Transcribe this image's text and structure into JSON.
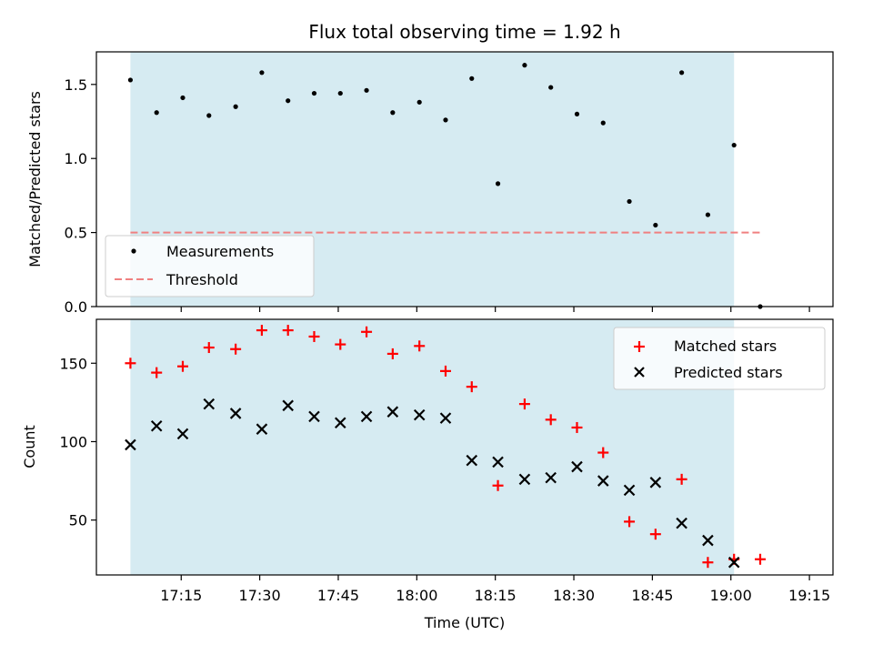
{
  "chart_data": {
    "type": "scatter",
    "title": "Flux total observing time = 1.92 h",
    "xlabel": "Time (UTC)",
    "x_tick_labels": [
      "17:15",
      "17:30",
      "17:45",
      "18:00",
      "18:15",
      "18:30",
      "18:45",
      "19:00",
      "19:15"
    ],
    "x_tick_minutes": [
      1035,
      1050,
      1065,
      1080,
      1095,
      1110,
      1125,
      1140,
      1155
    ],
    "xlim_minutes": [
      1018.8,
      1159.5
    ],
    "shaded_interval_minutes": [
      1025.3,
      1140.6
    ],
    "shade_color": "#add8e6",
    "times": [
      "17:10",
      "17:15",
      "17:20",
      "17:25",
      "17:30",
      "17:35",
      "17:40",
      "17:45",
      "17:50",
      "17:55",
      "18:00",
      "18:05",
      "18:10",
      "18:15",
      "18:20",
      "18:25",
      "18:30",
      "18:35",
      "18:40",
      "18:45",
      "18:50",
      "18:55",
      "19:00",
      "19:05",
      "19:10"
    ],
    "times_minutes": [
      1030.0,
      1035.0,
      1040.0,
      1045.0,
      1050.0,
      1055.0,
      1060.0,
      1065.0,
      1070.0,
      1075.0,
      1080.0,
      1085.0,
      1090.0,
      1095.0,
      1100.0,
      1105.0,
      1110.0,
      1115.0,
      1120.0,
      1125.0,
      1130.0,
      1135.0,
      1140.0,
      1145.0,
      1150.0
    ],
    "panels": [
      {
        "ylabel": "Matched/Predicted stars",
        "ylim": [
          0.0,
          1.72
        ],
        "y_ticks": [
          0.0,
          0.5,
          1.0,
          1.5
        ],
        "y_tick_labels": [
          "0.0",
          "0.5",
          "1.0",
          "1.5"
        ],
        "legend_position": "lower-left",
        "series": [
          {
            "name": "Measurements",
            "marker": "dot",
            "color": "#000000",
            "x_minutes": [
              1025.3,
              1030.3,
              1035.3,
              1040.3,
              1045.4,
              1050.4,
              1055.4,
              1060.4,
              1065.4,
              1070.4,
              1075.4,
              1080.5,
              1085.5,
              1090.5,
              1095.5,
              1100.6,
              1105.6,
              1110.6,
              1115.6,
              1120.6,
              1125.6,
              1130.6,
              1135.6,
              1140.6,
              1145.6
            ],
            "values": [
              1.53,
              1.31,
              1.41,
              1.29,
              1.35,
              1.58,
              1.39,
              1.44,
              1.44,
              1.46,
              1.31,
              1.38,
              1.26,
              1.54,
              0.83,
              1.63,
              1.48,
              1.3,
              1.24,
              0.71,
              0.55,
              1.58,
              0.62,
              1.09,
              0.0
            ]
          }
        ],
        "threshold": {
          "name": "Threshold",
          "value": 0.5,
          "color": "#f08080",
          "style": "dashed",
          "x_range_minutes": [
            1025.3,
            1145.6
          ]
        }
      },
      {
        "ylabel": "Count",
        "ylim": [
          15,
          178
        ],
        "y_ticks": [
          50,
          100,
          150
        ],
        "y_tick_labels": [
          "50",
          "100",
          "150"
        ],
        "legend_position": "upper-right",
        "series": [
          {
            "name": "Matched stars",
            "marker": "plus",
            "color": "#ff0000",
            "x_minutes": [
              1025.3,
              1030.3,
              1035.3,
              1040.3,
              1045.4,
              1050.4,
              1055.4,
              1060.4,
              1065.4,
              1070.4,
              1075.4,
              1080.5,
              1085.5,
              1090.5,
              1095.5,
              1100.6,
              1105.6,
              1110.6,
              1115.6,
              1120.6,
              1125.6,
              1130.6,
              1135.6,
              1140.6,
              1145.6
            ],
            "values": [
              150,
              144,
              148,
              160,
              159,
              171,
              171,
              167,
              162,
              170,
              156,
              161,
              145,
              135,
              72,
              124,
              114,
              109,
              93,
              49,
              41,
              76,
              23,
              25,
              25
            ]
          },
          {
            "name": "Predicted stars",
            "marker": "x",
            "color": "#000000",
            "x_minutes": [
              1025.3,
              1030.3,
              1035.3,
              1040.3,
              1045.4,
              1050.4,
              1055.4,
              1060.4,
              1065.4,
              1070.4,
              1075.4,
              1080.5,
              1085.5,
              1090.5,
              1095.5,
              1100.6,
              1105.6,
              1110.6,
              1115.6,
              1120.6,
              1125.6,
              1130.6,
              1135.6,
              1140.6
            ],
            "values": [
              98,
              110,
              105,
              124,
              118,
              108,
              123,
              116,
              112,
              116,
              119,
              117,
              115,
              88,
              87,
              76,
              77,
              84,
              75,
              69,
              74,
              48,
              37,
              23
            ]
          }
        ]
      }
    ]
  }
}
